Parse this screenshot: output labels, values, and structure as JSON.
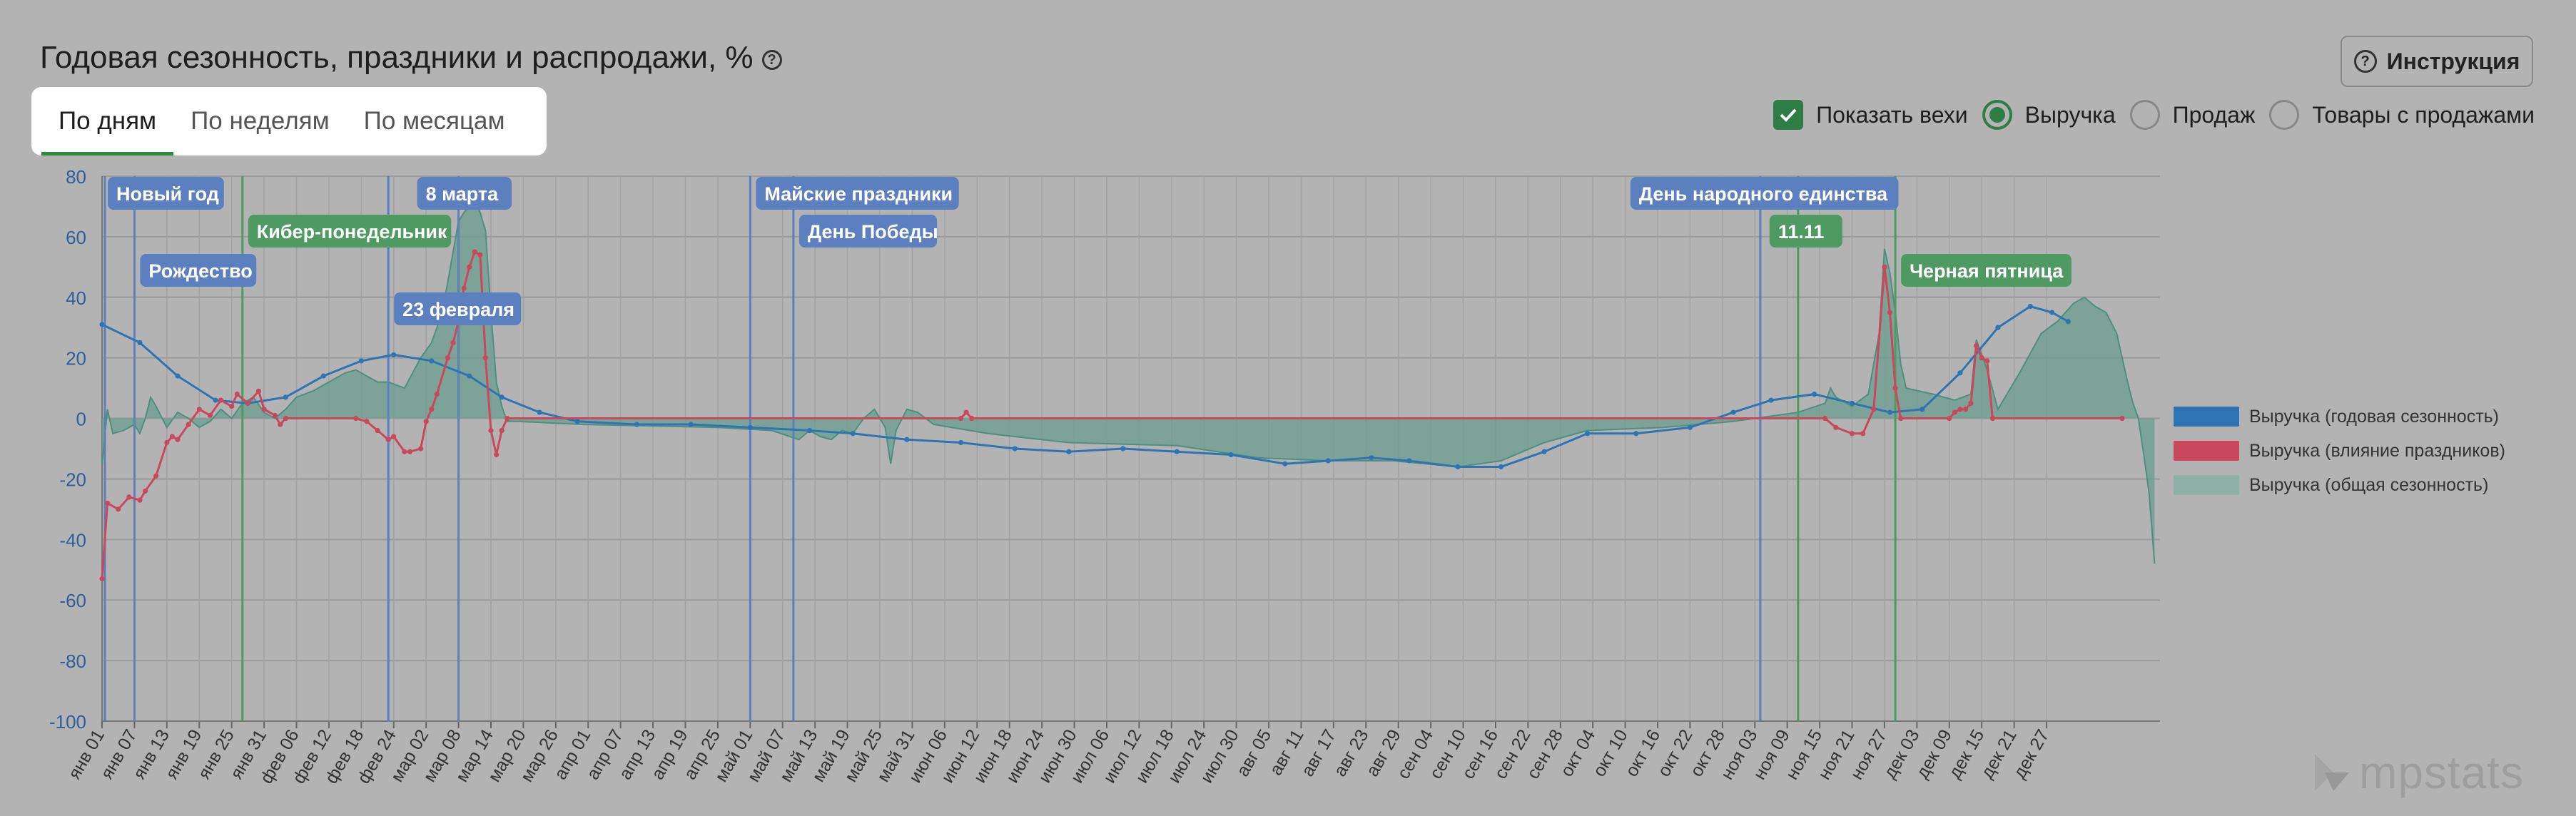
{
  "title": "Годовая сезонность, праздники и распродажи, %",
  "tabs": [
    "По дням",
    "По неделям",
    "По месяцам"
  ],
  "active_tab": "По дням",
  "instruction_button": "Инструкция",
  "options": {
    "show_milestones": "Показать вехи",
    "metrics": [
      "Выручка",
      "Продаж",
      "Товары с продажами"
    ],
    "selected_metric": "Выручка"
  },
  "legend": [
    {
      "label": "Выручка (годовая сезонность)",
      "color": "#2e74b5"
    },
    {
      "label": "Выручка (влияние праздников)",
      "color": "#c9485e"
    },
    {
      "label": "Выручка (общая сезонность)",
      "color": "#8fb0a6"
    }
  ],
  "logo_text": "mpstats",
  "colors": {
    "accent_green": "#2f7d46",
    "annotation_blue": "#5b7fbf",
    "annotation_green": "#4f9a62",
    "area_fill": "#6b9e8f",
    "area_line": "#4f8f7f",
    "blue_line": "#2e74b5",
    "red_line": "#c9485e"
  },
  "chart_data": {
    "type": "line",
    "xlabel": "",
    "ylabel": "",
    "ylim": [
      -100,
      80
    ],
    "yticks": [
      80,
      60,
      40,
      20,
      0,
      -20,
      -40,
      -60,
      -80,
      -100
    ],
    "x_domain_days": [
      1,
      365
    ],
    "grid": true,
    "legend_position": "right",
    "x_tick_labels": [
      "янв 01",
      "янв 07",
      "янв 13",
      "янв 19",
      "янв 25",
      "янв 31",
      "фев 06",
      "фев 12",
      "фев 18",
      "фев 24",
      "мар 02",
      "мар 08",
      "мар 14",
      "мар 20",
      "мар 26",
      "апр 01",
      "апр 07",
      "апр 13",
      "апр 19",
      "апр 25",
      "май 01",
      "май 07",
      "май 13",
      "май 19",
      "май 25",
      "май 31",
      "июн 06",
      "июн 12",
      "июн 18",
      "июн 24",
      "июн 30",
      "июл 06",
      "июл 12",
      "июл 18",
      "июл 24",
      "июл 30",
      "авг 05",
      "авг 11",
      "авг 17",
      "авг 23",
      "авг 29",
      "сен 04",
      "сен 10",
      "сен 16",
      "сен 22",
      "сен 28",
      "окт 04",
      "окт 10",
      "окт 16",
      "окт 22",
      "окт 28",
      "ноя 03",
      "ноя 09",
      "ноя 15",
      "ноя 21",
      "ноя 27",
      "дек 03",
      "дек 09",
      "дек 15",
      "дек 21",
      "дек 27"
    ],
    "series": [
      {
        "name": "Выручка (годовая сезонность)",
        "style": "dotted-line",
        "points": [
          [
            1,
            31
          ],
          [
            8,
            25
          ],
          [
            15,
            14
          ],
          [
            22,
            6
          ],
          [
            28,
            5
          ],
          [
            35,
            7
          ],
          [
            42,
            14
          ],
          [
            49,
            19
          ],
          [
            55,
            21
          ],
          [
            62,
            19
          ],
          [
            69,
            14
          ],
          [
            75,
            7
          ],
          [
            82,
            2
          ],
          [
            89,
            -1
          ],
          [
            100,
            -2
          ],
          [
            110,
            -2
          ],
          [
            121,
            -3
          ],
          [
            132,
            -4
          ],
          [
            140,
            -5
          ],
          [
            150,
            -7
          ],
          [
            160,
            -8
          ],
          [
            170,
            -10
          ],
          [
            180,
            -11
          ],
          [
            190,
            -10
          ],
          [
            200,
            -11
          ],
          [
            210,
            -12
          ],
          [
            220,
            -15
          ],
          [
            228,
            -14
          ],
          [
            236,
            -13
          ],
          [
            243,
            -14
          ],
          [
            252,
            -16
          ],
          [
            260,
            -16
          ],
          [
            268,
            -11
          ],
          [
            276,
            -5
          ],
          [
            285,
            -5
          ],
          [
            295,
            -3
          ],
          [
            303,
            2
          ],
          [
            310,
            6
          ],
          [
            318,
            8
          ],
          [
            325,
            5
          ],
          [
            332,
            2
          ],
          [
            338,
            3
          ],
          [
            345,
            15
          ],
          [
            352,
            30
          ],
          [
            358,
            37
          ],
          [
            362,
            35
          ],
          [
            365,
            32
          ]
        ]
      },
      {
        "name": "Выручка (влияние праздников)",
        "style": "line-with-markers",
        "points": [
          [
            1,
            -53
          ],
          [
            2,
            -28
          ],
          [
            4,
            -30
          ],
          [
            6,
            -26
          ],
          [
            8,
            -27
          ],
          [
            9,
            -24
          ],
          [
            11,
            -19
          ],
          [
            13,
            -8
          ],
          [
            14,
            -6
          ],
          [
            15,
            -7
          ],
          [
            17,
            -2
          ],
          [
            19,
            3
          ],
          [
            21,
            1
          ],
          [
            23,
            6
          ],
          [
            25,
            4
          ],
          [
            26,
            8
          ],
          [
            28,
            5
          ],
          [
            30,
            9
          ],
          [
            31,
            3
          ],
          [
            33,
            1
          ],
          [
            34,
            -2
          ],
          [
            35,
            0
          ],
          [
            48,
            0
          ],
          [
            50,
            -1
          ],
          [
            52,
            -4
          ],
          [
            54,
            -7
          ],
          [
            55,
            -6
          ],
          [
            57,
            -11
          ],
          [
            58,
            -11
          ],
          [
            60,
            -10
          ],
          [
            61,
            -1
          ],
          [
            62,
            3
          ],
          [
            63,
            8
          ],
          [
            65,
            20
          ],
          [
            66,
            25
          ],
          [
            67,
            32
          ],
          [
            68,
            43
          ],
          [
            69,
            50
          ],
          [
            70,
            55
          ],
          [
            71,
            54
          ],
          [
            72,
            20
          ],
          [
            73,
            -4
          ],
          [
            74,
            -12
          ],
          [
            75,
            -4
          ],
          [
            76,
            0
          ],
          [
            160,
            0
          ],
          [
            161,
            2
          ],
          [
            162,
            0
          ],
          [
            320,
            0
          ],
          [
            322,
            -3
          ],
          [
            325,
            -5
          ],
          [
            327,
            -5
          ],
          [
            329,
            3
          ],
          [
            331,
            50
          ],
          [
            332,
            35
          ],
          [
            333,
            10
          ],
          [
            334,
            0
          ],
          [
            343,
            0
          ],
          [
            344,
            2
          ],
          [
            345,
            3
          ],
          [
            346,
            3
          ],
          [
            347,
            5
          ],
          [
            348,
            24
          ],
          [
            349,
            20
          ],
          [
            350,
            19
          ],
          [
            351,
            0
          ],
          [
            375,
            0
          ]
        ]
      },
      {
        "name": "Выручка (общая сезонность)",
        "style": "area",
        "points": [
          [
            1,
            -15
          ],
          [
            2,
            3
          ],
          [
            3,
            -5
          ],
          [
            5,
            -4
          ],
          [
            7,
            -2
          ],
          [
            8,
            -5
          ],
          [
            9,
            0
          ],
          [
            10,
            7
          ],
          [
            11,
            4
          ],
          [
            13,
            -3
          ],
          [
            15,
            2
          ],
          [
            17,
            0
          ],
          [
            19,
            -3
          ],
          [
            21,
            -1
          ],
          [
            23,
            3
          ],
          [
            25,
            0
          ],
          [
            27,
            5
          ],
          [
            29,
            7
          ],
          [
            31,
            2
          ],
          [
            33,
            0
          ],
          [
            35,
            3
          ],
          [
            37,
            7
          ],
          [
            40,
            9
          ],
          [
            43,
            12
          ],
          [
            46,
            15
          ],
          [
            48,
            16
          ],
          [
            50,
            14
          ],
          [
            52,
            12
          ],
          [
            54,
            12
          ],
          [
            57,
            10
          ],
          [
            60,
            20
          ],
          [
            62,
            25
          ],
          [
            64,
            35
          ],
          [
            66,
            55
          ],
          [
            67,
            65
          ],
          [
            68,
            68
          ],
          [
            69,
            70
          ],
          [
            70,
            72
          ],
          [
            71,
            68
          ],
          [
            72,
            62
          ],
          [
            73,
            35
          ],
          [
            74,
            12
          ],
          [
            75,
            4
          ],
          [
            76,
            -1
          ],
          [
            78,
            -1
          ],
          [
            90,
            -2
          ],
          [
            115,
            -3
          ],
          [
            125,
            -4
          ],
          [
            130,
            -7
          ],
          [
            132,
            -4
          ],
          [
            134,
            -6
          ],
          [
            136,
            -7
          ],
          [
            138,
            -4
          ],
          [
            140,
            -5
          ],
          [
            142,
            0
          ],
          [
            144,
            3
          ],
          [
            146,
            -3
          ],
          [
            147,
            -15
          ],
          [
            148,
            -4
          ],
          [
            150,
            3
          ],
          [
            152,
            2
          ],
          [
            155,
            -2
          ],
          [
            165,
            -5
          ],
          [
            180,
            -8
          ],
          [
            200,
            -9
          ],
          [
            215,
            -13
          ],
          [
            228,
            -14
          ],
          [
            240,
            -14
          ],
          [
            252,
            -16
          ],
          [
            260,
            -14
          ],
          [
            268,
            -8
          ],
          [
            276,
            -4
          ],
          [
            290,
            -3
          ],
          [
            303,
            -1
          ],
          [
            315,
            2
          ],
          [
            320,
            5
          ],
          [
            321,
            10
          ],
          [
            322,
            7
          ],
          [
            325,
            4
          ],
          [
            328,
            8
          ],
          [
            330,
            28
          ],
          [
            331,
            56
          ],
          [
            332,
            48
          ],
          [
            333,
            35
          ],
          [
            334,
            18
          ],
          [
            335,
            10
          ],
          [
            340,
            8
          ],
          [
            344,
            6
          ],
          [
            347,
            8
          ],
          [
            348,
            26
          ],
          [
            349,
            21
          ],
          [
            350,
            16
          ],
          [
            352,
            3
          ],
          [
            356,
            15
          ],
          [
            360,
            28
          ],
          [
            363,
            32
          ],
          [
            366,
            38
          ],
          [
            368,
            40
          ],
          [
            370,
            37
          ],
          [
            372,
            35
          ],
          [
            374,
            28
          ],
          [
            376,
            12
          ],
          [
            377,
            5
          ],
          [
            378,
            0
          ],
          [
            379,
            -12
          ],
          [
            380,
            -25
          ],
          [
            381,
            -48
          ]
        ]
      }
    ],
    "milestones": [
      {
        "label": "Новый год",
        "day": 1,
        "color": "blue",
        "row": 0
      },
      {
        "label": "Рождество",
        "day": 7,
        "color": "blue",
        "row": 2
      },
      {
        "label": "Кибер-понедельник",
        "day": 27,
        "color": "green",
        "row": 1
      },
      {
        "label": "23 февраля",
        "day": 54,
        "color": "blue",
        "row": 3
      },
      {
        "label": "8 марта",
        "day": 67,
        "color": "blue",
        "row": 0
      },
      {
        "label": "Майские праздники",
        "day": 121,
        "color": "blue",
        "row": 0
      },
      {
        "label": "День Победы",
        "day": 129,
        "color": "blue",
        "row": 1
      },
      {
        "label": "День народного единства",
        "day": 308,
        "color": "blue",
        "row": 0
      },
      {
        "label": "11.11",
        "day": 315,
        "color": "green",
        "row": 1
      },
      {
        "label": "Черная пятница",
        "day": 333,
        "color": "green",
        "row": 2
      }
    ]
  }
}
